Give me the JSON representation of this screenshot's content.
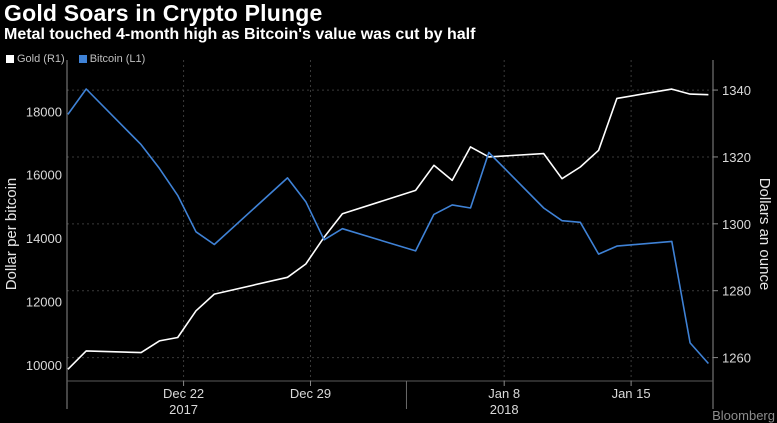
{
  "chart_data": {
    "type": "line",
    "title": "Gold Soars in Crypto Plunge",
    "subtitle": "Metal touched 4-month high as Bitcoin's value was cut by half",
    "xlabel": "",
    "ylabel_left": "Dollar per bitcoin",
    "ylabel_right": "Dollars an ounce",
    "ylim_left": [
      9500,
      19300
    ],
    "ylim_right": [
      1253,
      1346
    ],
    "yticks_left": [
      10000,
      12000,
      14000,
      16000,
      18000
    ],
    "yticks_right": [
      1260,
      1280,
      1300,
      1320,
      1340
    ],
    "xticks": [
      {
        "label": "Dec 22",
        "x": 2017.968
      },
      {
        "label": "Dec 29",
        "x": 2017.987
      },
      {
        "label": "Jan 8",
        "x": 2018.016
      },
      {
        "label": "Jan 15",
        "x": 2018.035
      }
    ],
    "year_labels": [
      {
        "label": "2017",
        "x": 2017.968
      },
      {
        "label": "2018",
        "x": 2018.016
      }
    ],
    "grid": true,
    "legend_position": "top-left",
    "series": [
      {
        "name": "Gold (R1)",
        "axis": "right",
        "color": "#ffffff",
        "x": [
          "Dec 14",
          "Dec 15",
          "Dec 18",
          "Dec 19",
          "Dec 20",
          "Dec 21",
          "Dec 22",
          "Dec 26",
          "Dec 27",
          "Dec 28",
          "Dec 29",
          "Jan 1",
          "Jan 2",
          "Jan 3",
          "Jan 4",
          "Jan 5",
          "Jan 8",
          "Jan 9",
          "Jan 10",
          "Jan 11",
          "Jan 12",
          "Jan 15",
          "Jan 16",
          "Jan 17"
        ],
        "values": [
          1256.5,
          1262,
          1261.5,
          1265,
          1266,
          1274,
          1279,
          1284,
          1288,
          1296,
          1303,
          1310,
          1317.5,
          1313,
          1323,
          1320,
          1321,
          1313.5,
          1317,
          1322,
          1337.5,
          1340.3,
          1338.8,
          1338.6
        ]
      },
      {
        "name": "Bitcoin (L1)",
        "axis": "left",
        "color": "#3f82d6",
        "x": [
          "Dec 14",
          "Dec 15",
          "Dec 18",
          "Dec 19",
          "Dec 20",
          "Dec 21",
          "Dec 22",
          "Dec 26",
          "Dec 27",
          "Dec 28",
          "Dec 29",
          "Jan 1",
          "Jan 2",
          "Jan 3",
          "Jan 4",
          "Jan 5",
          "Jan 8",
          "Jan 9",
          "Jan 10",
          "Jan 11",
          "Jan 12",
          "Jan 15",
          "Jan 16",
          "Jan 17"
        ],
        "values": [
          17900,
          18700,
          16950,
          16200,
          15350,
          14200,
          13800,
          15900,
          15150,
          13950,
          14300,
          13600,
          14750,
          15050,
          14950,
          16700,
          14950,
          14550,
          14500,
          13500,
          13750,
          13900,
          10700,
          10050
        ]
      }
    ]
  },
  "colors": {
    "background": "#000000",
    "gold_line": "#ffffff",
    "bitcoin_line": "#3f82d6",
    "grid": "#3a3a3a",
    "tick_text": "#d9d9d9"
  },
  "footer": {
    "source_text": "Bloomberg"
  }
}
